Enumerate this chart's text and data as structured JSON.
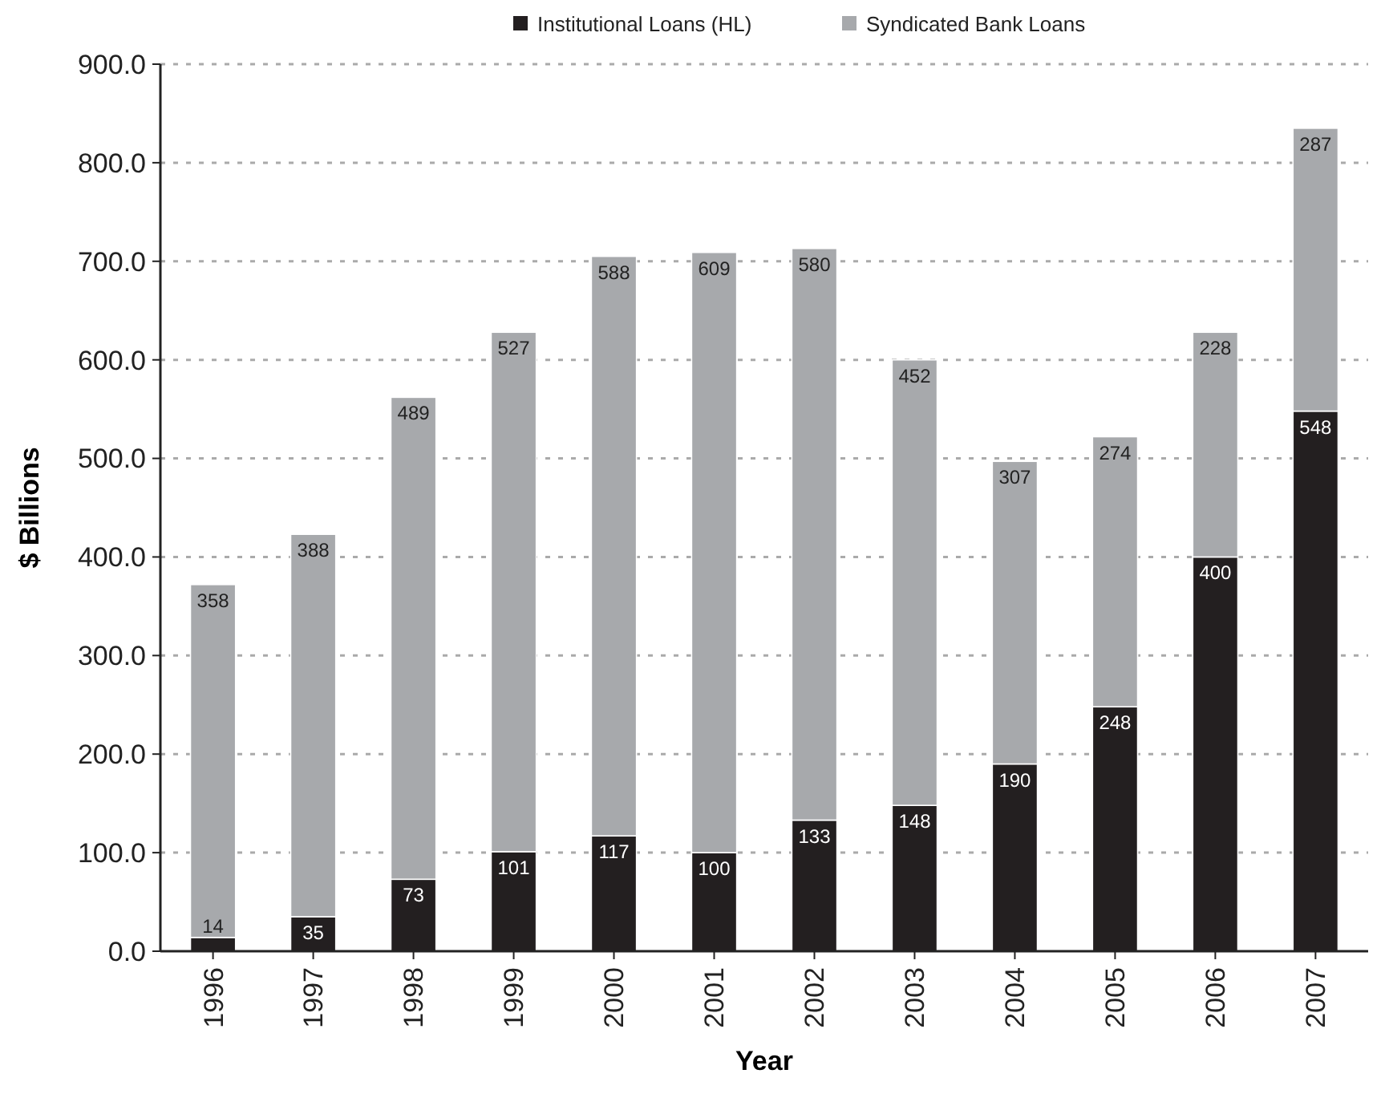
{
  "chart_data": {
    "type": "bar",
    "stacked": true,
    "xlabel": "Year",
    "ylabel": "$ Billions",
    "categories": [
      "1996",
      "1997",
      "1998",
      "1999",
      "2000",
      "2001",
      "2002",
      "2003",
      "2004",
      "2005",
      "2006",
      "2007"
    ],
    "series": [
      {
        "name": "Institutional Loans (HL)",
        "color": "#231f20",
        "values": [
          14,
          35,
          73,
          101,
          117,
          100,
          133,
          148,
          190,
          248,
          400,
          548
        ]
      },
      {
        "name": "Syndicated Bank Loans",
        "color": "#a7a9ac",
        "values": [
          358,
          388,
          489,
          527,
          588,
          609,
          580,
          452,
          307,
          274,
          228,
          287
        ]
      }
    ],
    "ylim": [
      0,
      900
    ],
    "yticks": [
      {
        "value": 0,
        "label": "0.0"
      },
      {
        "value": 100,
        "label": "100.0"
      },
      {
        "value": 200,
        "label": "200.0"
      },
      {
        "value": 300,
        "label": "300.0"
      },
      {
        "value": 400,
        "label": "400.0"
      },
      {
        "value": 500,
        "label": "500.0"
      },
      {
        "value": 600,
        "label": "600.0"
      },
      {
        "value": 700,
        "label": "700.0"
      },
      {
        "value": 800,
        "label": "800.0"
      },
      {
        "value": 900,
        "label": "900.0"
      }
    ],
    "grid": "y",
    "legend": "top",
    "data_labels": true
  }
}
